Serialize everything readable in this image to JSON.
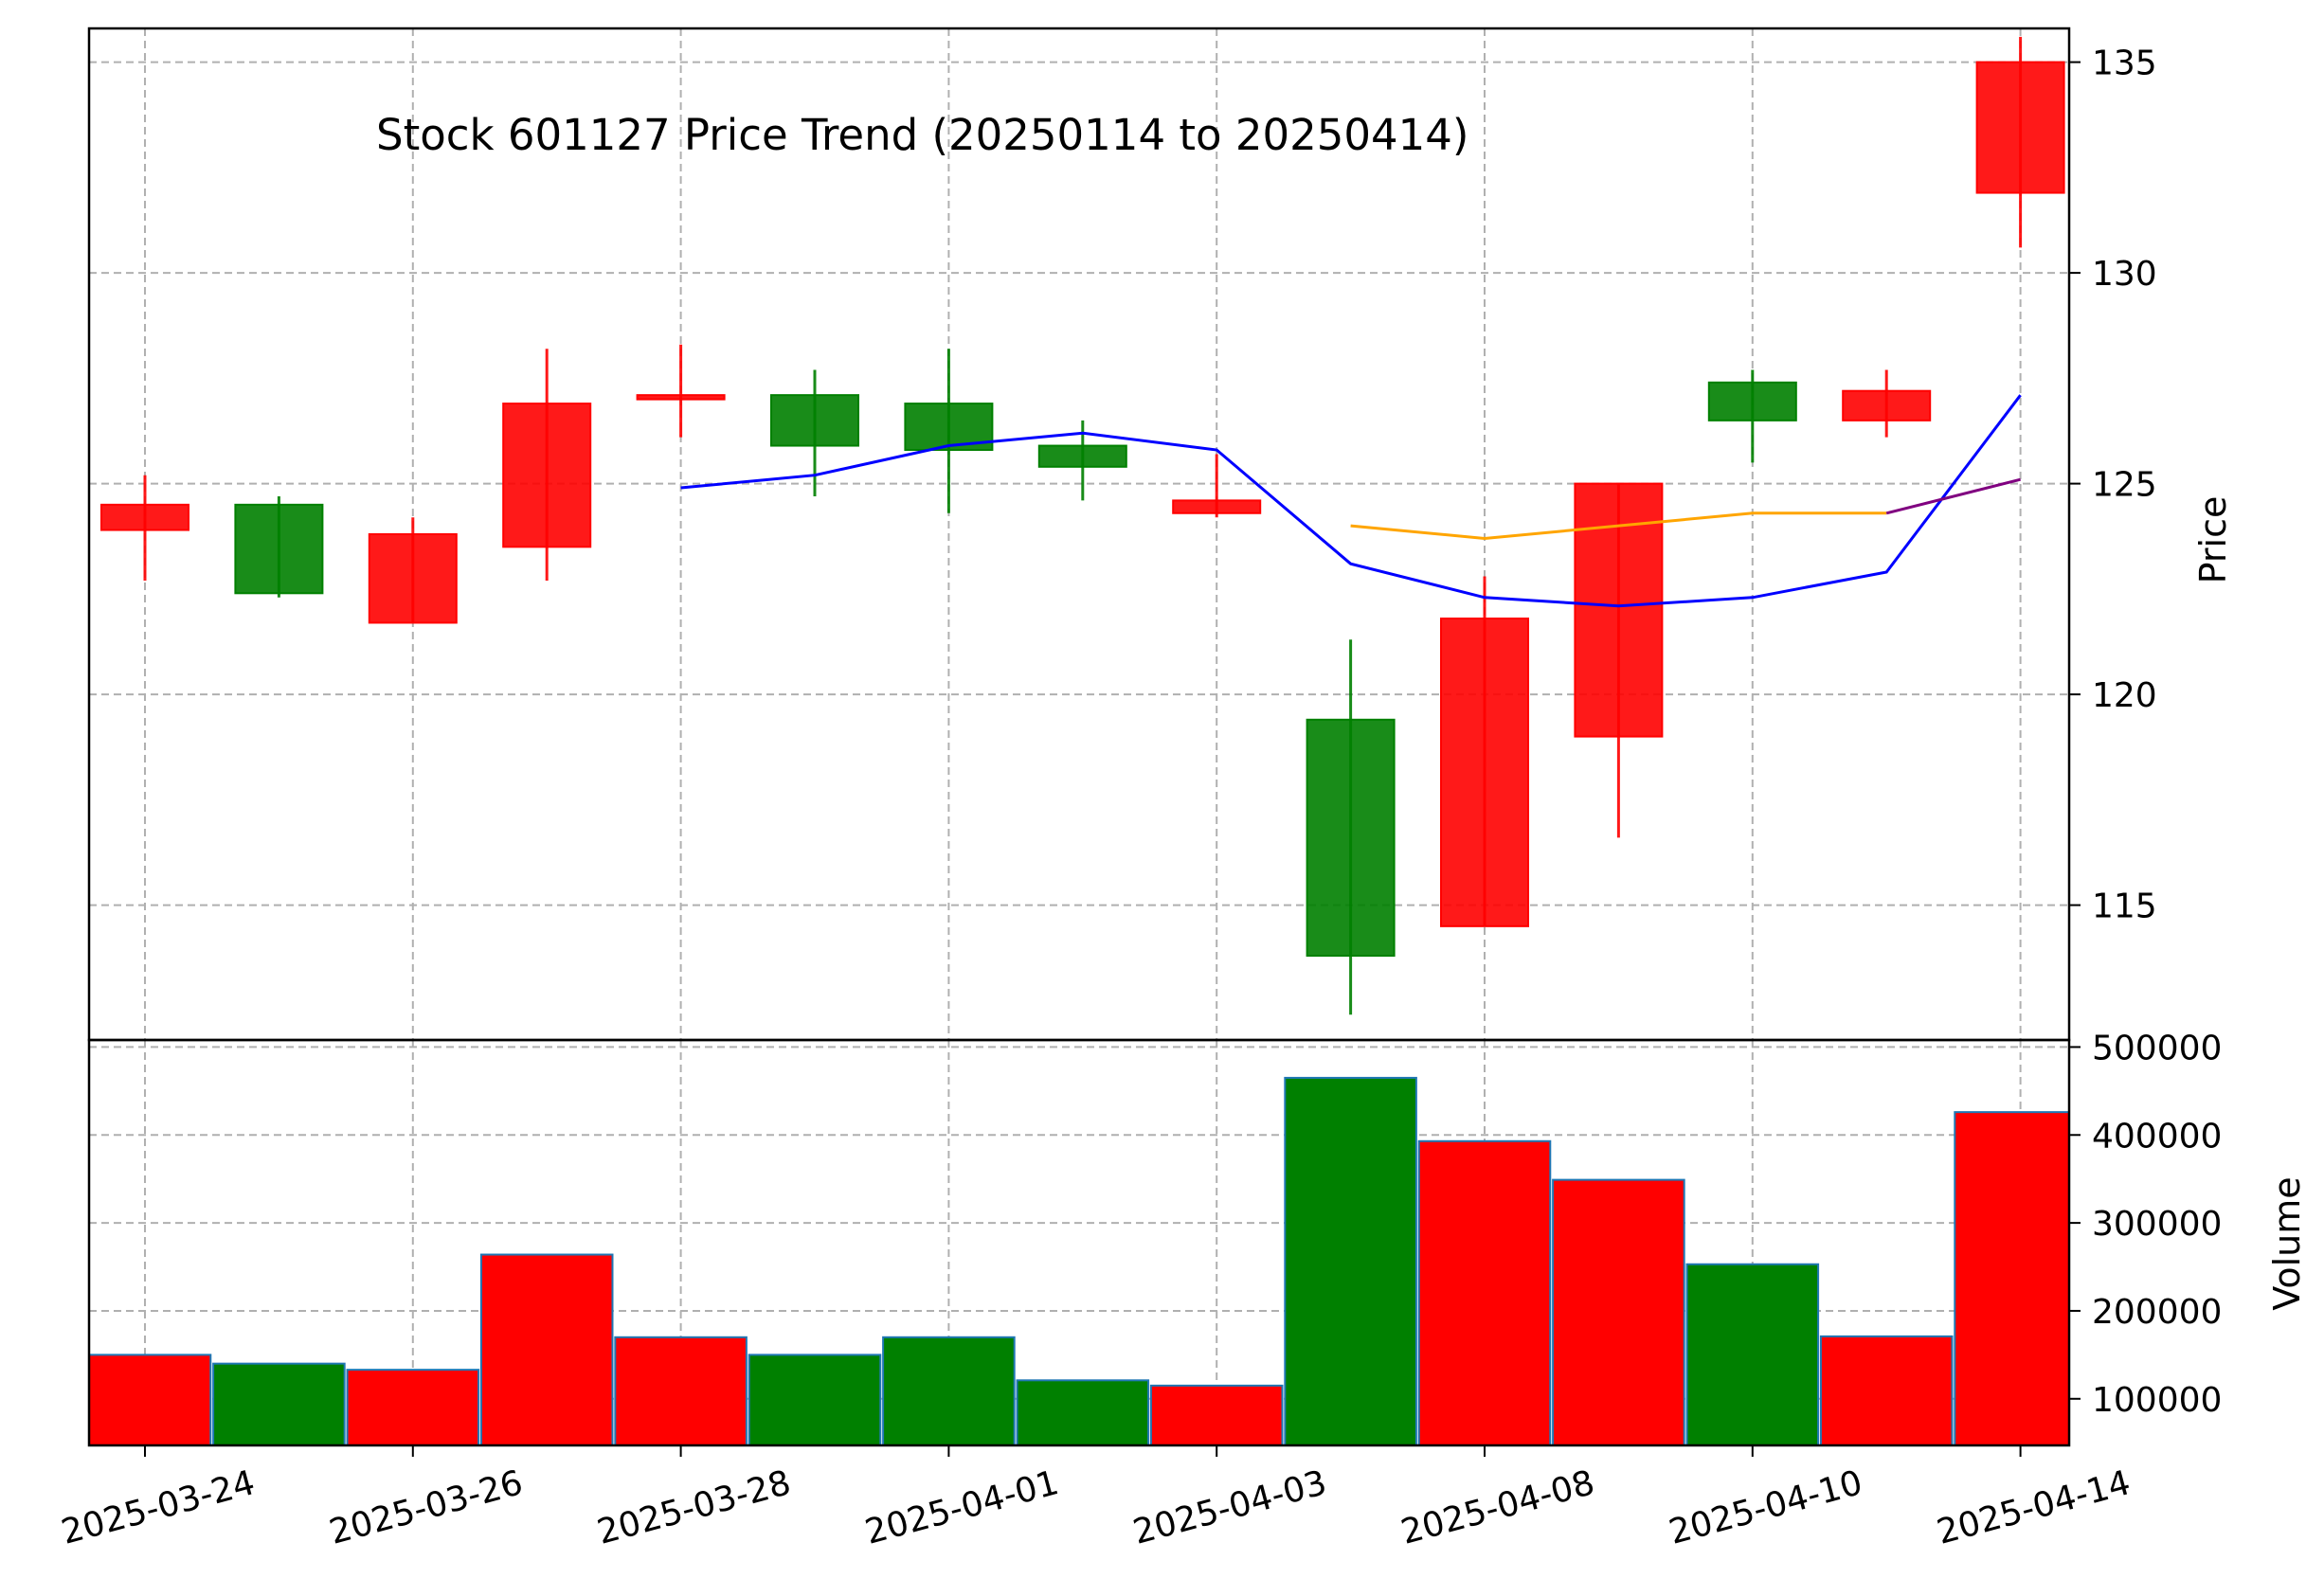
{
  "chart_data": {
    "type": "candlestick",
    "title": "Stock 601127 Price Trend (20250114 to 20250414)",
    "price_axis": {
      "label": "Price",
      "ylim": [
        111.8,
        135.8
      ],
      "ticks": [
        115,
        120,
        125,
        130,
        135
      ],
      "position": "right"
    },
    "volume_axis": {
      "label": "Volume",
      "ylim": [
        47000,
        508000
      ],
      "ticks": [
        100000,
        200000,
        300000,
        400000,
        500000
      ],
      "tick_labels": [
        "100000",
        "200000",
        "300000",
        "400000",
        "500000"
      ],
      "position": "right"
    },
    "x_tick_labels": [
      "2025-03-24",
      "2025-03-26",
      "2025-03-28",
      "2025-04-01",
      "2025-04-03",
      "2025-04-08",
      "2025-04-10",
      "2025-04-14"
    ],
    "x_tick_indices": [
      0,
      2,
      4,
      6,
      8,
      10,
      12,
      14
    ],
    "grid": true,
    "colors": {
      "up": "#ff0000",
      "down": "#008000",
      "ma_blue": "#0000ff",
      "ma_orange": "#ffa500",
      "ma_purple": "#800080",
      "volume_edge": "#1f77b4"
    },
    "candles": [
      {
        "open": 123.9,
        "close": 124.5,
        "high": 125.2,
        "low": 122.7
      },
      {
        "open": 124.5,
        "close": 122.4,
        "high": 124.7,
        "low": 122.3
      },
      {
        "open": 121.7,
        "close": 123.8,
        "high": 124.2,
        "low": 121.7
      },
      {
        "open": 123.5,
        "close": 126.9,
        "high": 128.2,
        "low": 122.7
      },
      {
        "open": 127.0,
        "close": 127.1,
        "high": 128.3,
        "low": 126.1
      },
      {
        "open": 127.1,
        "close": 125.9,
        "high": 127.7,
        "low": 124.7
      },
      {
        "open": 126.9,
        "close": 125.8,
        "high": 128.2,
        "low": 124.3
      },
      {
        "open": 125.9,
        "close": 125.4,
        "high": 126.5,
        "low": 124.6
      },
      {
        "open": 124.3,
        "close": 124.6,
        "high": 125.7,
        "low": 124.2
      },
      {
        "open": 119.4,
        "close": 113.8,
        "high": 121.3,
        "low": 112.4
      },
      {
        "open": 114.5,
        "close": 121.8,
        "high": 122.8,
        "low": 114.5
      },
      {
        "open": 119.0,
        "close": 125.0,
        "high": 125.0,
        "low": 116.6
      },
      {
        "open": 127.4,
        "close": 126.5,
        "high": 127.7,
        "low": 125.5
      },
      {
        "open": 126.5,
        "close": 127.2,
        "high": 127.7,
        "low": 126.1
      },
      {
        "open": 131.9,
        "close": 135.0,
        "high": 135.6,
        "low": 130.6
      }
    ],
    "volumes": [
      150000,
      140000,
      133000,
      264000,
      170000,
      150000,
      170000,
      121000,
      115000,
      465000,
      393000,
      349000,
      253000,
      171000,
      426000
    ],
    "moving_averages": [
      {
        "color": "#0000ff",
        "values": [
          null,
          null,
          null,
          null,
          124.9,
          125.2,
          125.9,
          126.2,
          125.8,
          123.1,
          122.3,
          122.1,
          122.3,
          122.9,
          127.1
        ]
      },
      {
        "color": "#ffa500",
        "values": [
          null,
          null,
          null,
          null,
          null,
          null,
          null,
          null,
          null,
          124.0,
          123.7,
          124.0,
          124.3,
          124.3,
          null
        ]
      },
      {
        "color": "#800080",
        "values": [
          null,
          null,
          null,
          null,
          null,
          null,
          null,
          null,
          null,
          null,
          null,
          null,
          null,
          124.3,
          125.1
        ]
      }
    ]
  }
}
